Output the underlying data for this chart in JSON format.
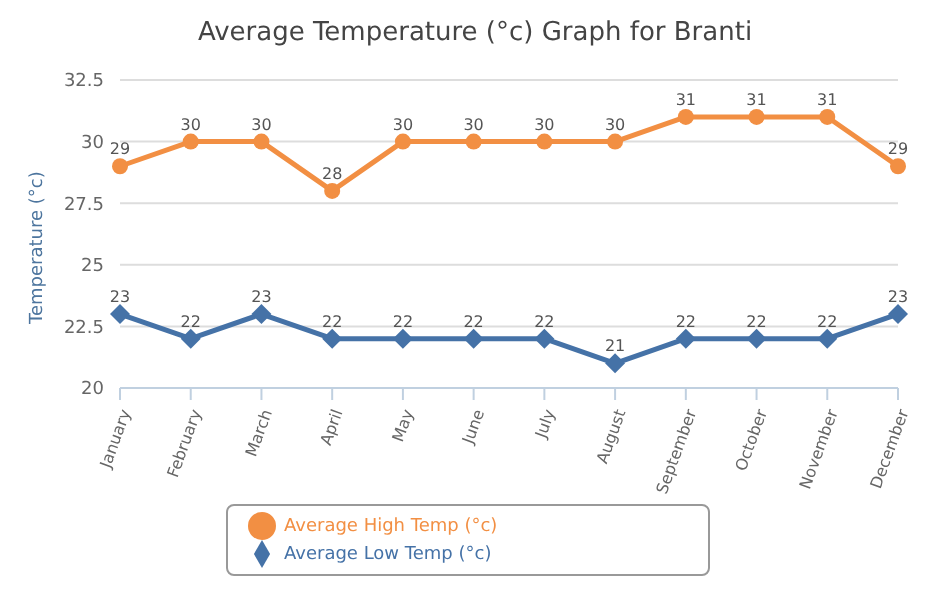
{
  "chart_data": {
    "type": "line",
    "title": "Average Temperature (°c) Graph for Branti",
    "ylabel": "Temperature (°c)",
    "categories": [
      "January",
      "February",
      "March",
      "April",
      "May",
      "June",
      "July",
      "August",
      "September",
      "October",
      "November",
      "December"
    ],
    "series": [
      {
        "name": "Average High Temp (°c)",
        "color": "#f28f43",
        "marker": "circle",
        "values": [
          29,
          30,
          30,
          28,
          30,
          30,
          30,
          30,
          31,
          31,
          31,
          29
        ]
      },
      {
        "name": "Average Low Temp (°c)",
        "color": "#4572a7",
        "marker": "diamond",
        "values": [
          23,
          22,
          23,
          22,
          22,
          22,
          22,
          21,
          22,
          22,
          22,
          23
        ]
      }
    ],
    "ylim": [
      20,
      32.5
    ],
    "yticks": [
      20,
      22.5,
      25,
      27.5,
      30,
      32.5
    ],
    "grid": "y",
    "legend": "bottom",
    "data_labels": true,
    "line_style": "solid"
  }
}
